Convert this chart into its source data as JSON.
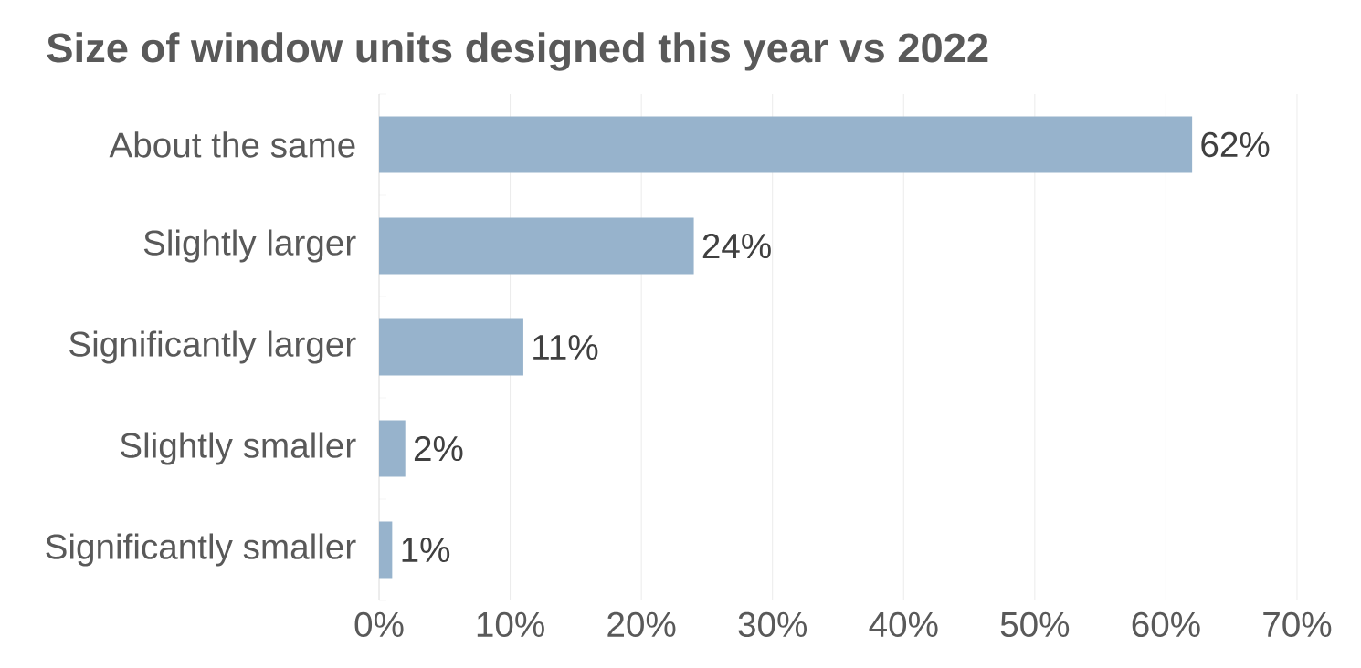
{
  "chart_data": {
    "type": "bar",
    "orientation": "horizontal",
    "title": "Size of window units designed this year vs 2022",
    "categories": [
      "About the same",
      "Slightly larger",
      "Significantly larger",
      "Slightly smaller",
      "Significantly smaller"
    ],
    "values": [
      62,
      24,
      11,
      2,
      1
    ],
    "value_labels": [
      "62%",
      "24%",
      "11%",
      "2%",
      "1%"
    ],
    "color": "#97b3cc",
    "xlim": [
      0,
      70
    ],
    "xticks": [
      {
        "value": 0,
        "label": "0%"
      },
      {
        "value": 10,
        "label": "10%"
      },
      {
        "value": 20,
        "label": "20%"
      },
      {
        "value": 30,
        "label": "30%"
      },
      {
        "value": 40,
        "label": "40%"
      },
      {
        "value": 50,
        "label": "50%"
      },
      {
        "value": 60,
        "label": "60%"
      },
      {
        "value": 70,
        "label": "70%"
      }
    ],
    "grid": "x"
  }
}
